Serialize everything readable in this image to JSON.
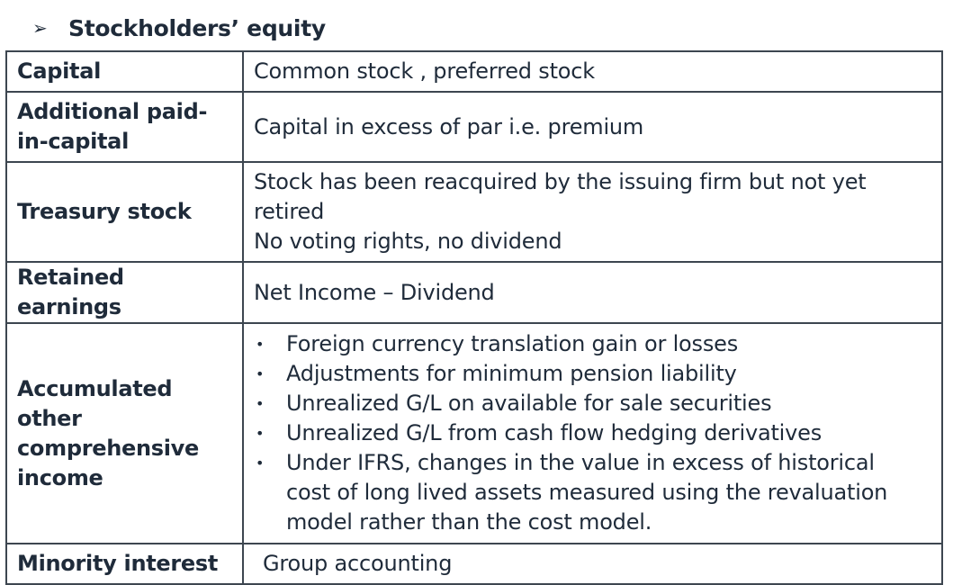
{
  "heading": {
    "arrow_icon": "arrow-bullet-icon",
    "title": "Stockholders’ equity"
  },
  "rows": [
    {
      "label": "Capital",
      "lines": [
        "Common stock , preferred stock"
      ]
    },
    {
      "label_lines": [
        "Additional paid-",
        "in-capital"
      ],
      "lines": [
        "Capital in excess of par i.e. premium"
      ]
    },
    {
      "label": "Treasury stock",
      "lines": [
        "Stock has been reacquired by the issuing firm but not yet",
        "retired",
        "No voting rights, no dividend"
      ]
    },
    {
      "label": "Retained earnings",
      "lines": [
        "Net Income  – Dividend"
      ]
    },
    {
      "label_lines": [
        "Accumulated",
        "other",
        "comprehensive",
        "income"
      ],
      "bullets": [
        {
          "lines": [
            "Foreign currency translation gain or losses"
          ]
        },
        {
          "lines": [
            "Adjustments for minimum pension liability"
          ]
        },
        {
          "lines": [
            "Unrealized G/L on available for sale securities"
          ]
        },
        {
          "lines": [
            "Unrealized G/L from cash flow hedging derivatives"
          ]
        },
        {
          "lines": [
            "Under IFRS, changes in  the value in excess of historical",
            "cost of long lived assets measured using the revaluation",
            "model rather than the cost model."
          ]
        }
      ]
    },
    {
      "label": "Minority interest",
      "lines": [
        "Group accounting"
      ]
    }
  ],
  "bullet_char": "•"
}
